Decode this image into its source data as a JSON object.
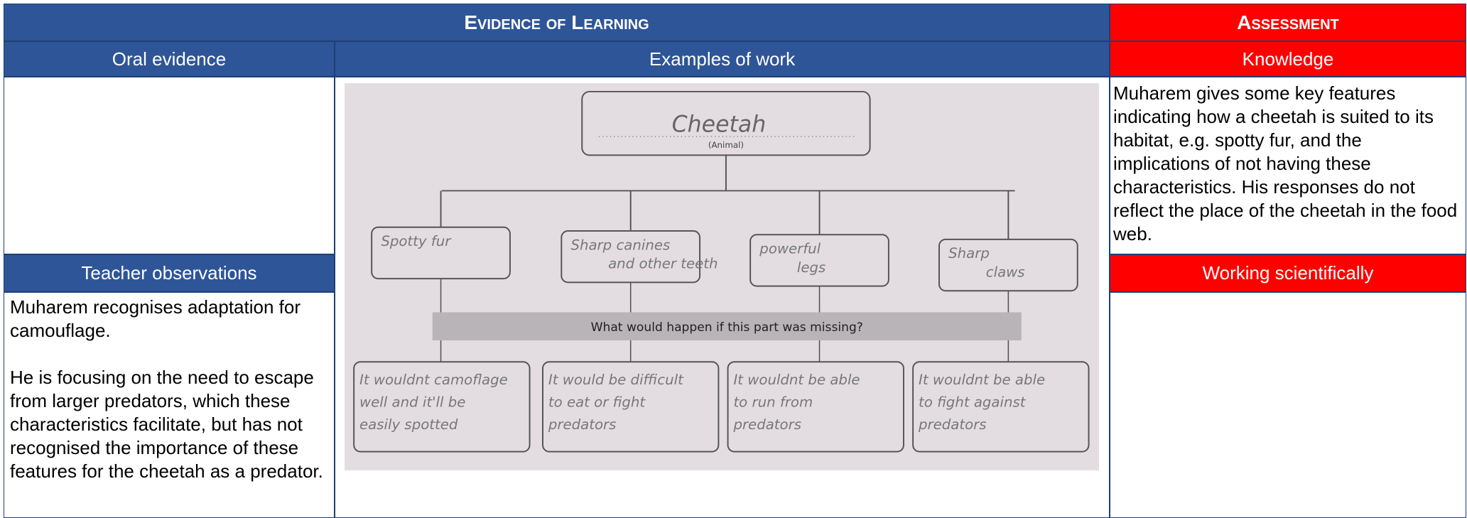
{
  "header": {
    "evidence": "Evidence of Learning",
    "assessment": "Assessment"
  },
  "columns": {
    "oral": "Oral evidence",
    "work": "Examples of work",
    "knowledge": "Knowledge"
  },
  "teacher_observations": {
    "title": "Teacher observations",
    "paragraphs": [
      "Muharem recognises adaptation for camouflage.",
      "He is focusing on the need to escape from larger predators, which these characteristics facilitate, but has not recognised the importance of these features for the cheetah as a predator."
    ]
  },
  "knowledge_text": "Muharem gives some key features indicating how a cheetah is suited to its habitat, e.g. spotty fur, and the implications of not having these characteristics. His responses do not reflect the place of the cheetah in the food web.",
  "working_scientifically": "Working scientifically",
  "worksheet": {
    "animal": "Cheetah",
    "animal_label": "(Animal)",
    "features": [
      [
        "Spotty fur"
      ],
      [
        "Sharp canines",
        "and other teeth"
      ],
      [
        "powerful",
        "legs"
      ],
      [
        "Sharp",
        "claws"
      ]
    ],
    "question": "What would happen if this part was missing?",
    "answers": [
      [
        "It wouldnt camoflage",
        "well and it'll be",
        "easily spotted"
      ],
      [
        "It would be difficult",
        "to eat or fight",
        "predators"
      ],
      [
        "It wouldnt be able",
        "to run from",
        "predators"
      ],
      [
        "It wouldnt be able",
        "to fight against",
        "predators"
      ]
    ]
  }
}
